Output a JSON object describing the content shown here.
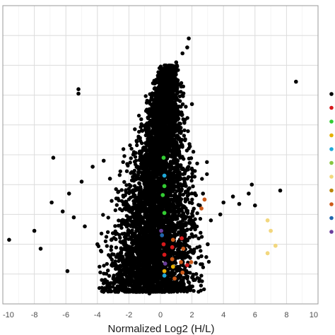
{
  "chart_data": {
    "type": "scatter",
    "title": "",
    "xlabel": "Normalized Log2 (H/L)",
    "ylabel": "",
    "xlim": [
      -10,
      10
    ],
    "ylim": [
      0,
      10
    ],
    "x_ticks": [
      -10,
      -8,
      -6,
      -4,
      -2,
      0,
      2,
      4,
      6,
      8,
      10
    ],
    "grid": true,
    "legend": "right (entries cropped; only colored markers visible)",
    "legend_colors": [
      "#000000",
      "#d7191c",
      "#33cc33",
      "#e6b000",
      "#1fa8d8",
      "#88c540",
      "#f2d77e",
      "#b8860b",
      "#cc5a1a",
      "#2166ac",
      "#6a3d9a"
    ],
    "series": [
      {
        "color": "#000000",
        "note": "dense cloud of several thousand points; outliers listed",
        "points": [
          [
            -9.6,
            2.15
          ],
          [
            -8.0,
            2.45
          ],
          [
            -7.6,
            1.85
          ],
          [
            -5.2,
            7.2
          ],
          [
            -5.2,
            7.05
          ],
          [
            -6.8,
            4.9
          ],
          [
            -5.0,
            4.1
          ],
          [
            -5.8,
            3.7
          ],
          [
            -6.2,
            3.1
          ],
          [
            -6.9,
            3.4
          ],
          [
            -4.3,
            4.6
          ],
          [
            -3.6,
            4.8
          ],
          [
            -3.2,
            4.2
          ],
          [
            -4.8,
            2.6
          ],
          [
            -4.0,
            2.0
          ],
          [
            -3.1,
            1.3
          ],
          [
            -5.9,
            1.1
          ],
          [
            -5.5,
            2.9
          ],
          [
            -2.6,
            1.0
          ],
          [
            -1.8,
            0.45
          ],
          [
            -0.7,
            0.35
          ],
          [
            0.6,
            0.45
          ],
          [
            1.7,
            0.85
          ],
          [
            2.6,
            1.6
          ],
          [
            3.0,
            2.0
          ],
          [
            3.2,
            2.8
          ],
          [
            3.8,
            3.0
          ],
          [
            4.0,
            3.4
          ],
          [
            4.6,
            3.6
          ],
          [
            5.0,
            3.35
          ],
          [
            5.6,
            3.7
          ],
          [
            5.8,
            4.0
          ],
          [
            6.0,
            3.3
          ],
          [
            7.6,
            3.8
          ],
          [
            8.6,
            7.45
          ],
          [
            1.8,
            8.9
          ],
          [
            1.7,
            8.6
          ],
          [
            1.4,
            8.4
          ],
          [
            1.0,
            8.1
          ],
          [
            1.1,
            7.5
          ],
          [
            0.4,
            7.1
          ],
          [
            2.0,
            6.7
          ],
          [
            2.7,
            3.7
          ],
          [
            2.5,
            3.3
          ],
          [
            2.2,
            2.5
          ]
        ]
      },
      {
        "color": "#d7191c",
        "points": [
          [
            0.2,
            2.0
          ],
          [
            1.35,
            2.2
          ],
          [
            0.25,
            1.65
          ],
          [
            0.75,
            1.9
          ],
          [
            1.7,
            1.3
          ]
        ]
      },
      {
        "color": "#33cc33",
        "points": [
          [
            0.2,
            4.9
          ],
          [
            0.25,
            3.95
          ],
          [
            0.15,
            3.65
          ],
          [
            0.25,
            3.05
          ]
        ]
      },
      {
        "color": "#e6b000",
        "points": [
          [
            0.25,
            1.1
          ],
          [
            0.8,
            1.25
          ]
        ]
      },
      {
        "color": "#1fa8d8",
        "points": [
          [
            0.25,
            4.3
          ],
          [
            0.25,
            0.95
          ]
        ]
      },
      {
        "color": "#f2d77e",
        "points": [
          [
            6.8,
            2.8
          ],
          [
            7.0,
            2.45
          ],
          [
            7.3,
            1.95
          ],
          [
            6.8,
            1.7
          ]
        ]
      },
      {
        "color": "#cc5a1a",
        "points": [
          [
            2.8,
            3.5
          ],
          [
            2.6,
            3.2
          ],
          [
            0.8,
            2.15
          ],
          [
            1.45,
            1.85
          ],
          [
            0.75,
            1.5
          ],
          [
            1.3,
            1.4
          ],
          [
            0.9,
            0.85
          ],
          [
            1.95,
            1.4
          ],
          [
            1.4,
            1.05
          ]
        ]
      },
      {
        "color": "#6a3d9a",
        "points": [
          [
            0.05,
            2.45
          ],
          [
            0.3,
            1.35
          ]
        ]
      },
      {
        "color": "#2166ac",
        "points": [
          [
            0.1,
            2.3
          ]
        ]
      }
    ]
  }
}
